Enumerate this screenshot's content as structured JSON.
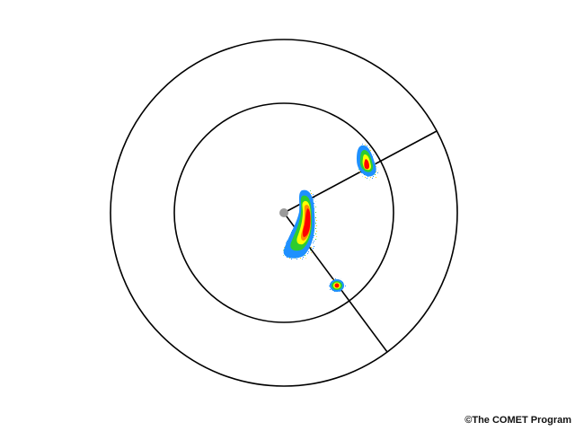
{
  "credit": "©The COMET Program",
  "colors": {
    "background": "#ffffff",
    "range_rings": "#000000",
    "radials": "#000000",
    "radar_site": "#9a9a9a",
    "reflectivity_scale": [
      "#1e90ff",
      "#2ecc2e",
      "#ffff00",
      "#ff8c00",
      "#ff0000"
    ]
  }
}
